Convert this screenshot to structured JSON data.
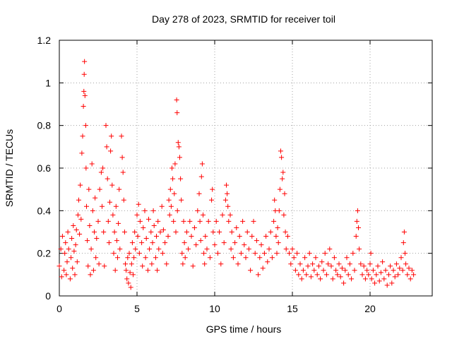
{
  "chart_data": {
    "type": "scatter",
    "title": "Day 278 of 2023, SRMTID for receiver toil",
    "xlabel": "GPS time / hours",
    "ylabel": "SRMTID / TECUs",
    "xlim": [
      0,
      24
    ],
    "ylim": [
      0,
      1.2
    ],
    "xticks": [
      0,
      5,
      10,
      15,
      20
    ],
    "xtick_labels": [
      "0",
      "5",
      "10",
      "15",
      "20"
    ],
    "yticks": [
      0,
      0.2,
      0.4,
      0.6,
      0.8,
      1.0,
      1.2
    ],
    "ytick_labels": [
      "0",
      "0.2",
      "0.4",
      "0.6",
      "0.8",
      "1",
      "1.2"
    ],
    "grid": true,
    "marker": "+",
    "color": "#ff0000",
    "series": [
      {
        "name": "SRMTID",
        "points": [
          [
            0.0,
            0.14
          ],
          [
            0.1,
            0.22
          ],
          [
            0.15,
            0.09
          ],
          [
            0.2,
            0.28
          ],
          [
            0.3,
            0.12
          ],
          [
            0.35,
            0.2
          ],
          [
            0.4,
            0.25
          ],
          [
            0.45,
            0.1
          ],
          [
            0.5,
            0.16
          ],
          [
            0.55,
            0.3
          ],
          [
            0.6,
            0.22
          ],
          [
            0.7,
            0.08
          ],
          [
            0.75,
            0.18
          ],
          [
            0.8,
            0.27
          ],
          [
            0.85,
            0.13
          ],
          [
            0.9,
            0.33
          ],
          [
            0.95,
            0.21
          ],
          [
            1.0,
            0.1
          ],
          [
            1.05,
            0.24
          ],
          [
            1.1,
            0.31
          ],
          [
            1.15,
            0.16
          ],
          [
            1.2,
            0.38
          ],
          [
            1.25,
            0.45
          ],
          [
            1.3,
            0.29
          ],
          [
            1.35,
            0.52
          ],
          [
            1.4,
            0.36
          ],
          [
            1.45,
            0.67
          ],
          [
            1.5,
            0.75
          ],
          [
            1.55,
            0.89
          ],
          [
            1.58,
            0.96
          ],
          [
            1.6,
            1.04
          ],
          [
            1.62,
            1.1
          ],
          [
            1.65,
            0.94
          ],
          [
            1.7,
            0.8
          ],
          [
            1.72,
            0.6
          ],
          [
            1.75,
            0.42
          ],
          [
            1.8,
            0.26
          ],
          [
            1.85,
            0.14
          ],
          [
            1.9,
            0.5
          ],
          [
            1.95,
            0.33
          ],
          [
            2.0,
            0.1
          ],
          [
            2.05,
            0.22
          ],
          [
            2.1,
            0.62
          ],
          [
            2.15,
            0.4
          ],
          [
            2.2,
            0.12
          ],
          [
            2.25,
            0.3
          ],
          [
            2.3,
            0.46
          ],
          [
            2.35,
            0.18
          ],
          [
            2.4,
            0.27
          ],
          [
            2.5,
            0.35
          ],
          [
            2.55,
            0.15
          ],
          [
            2.6,
            0.5
          ],
          [
            2.7,
            0.58
          ],
          [
            2.75,
            0.42
          ],
          [
            2.8,
            0.6
          ],
          [
            2.85,
            0.3
          ],
          [
            2.9,
            0.14
          ],
          [
            3.0,
            0.8
          ],
          [
            3.05,
            0.7
          ],
          [
            3.1,
            0.55
          ],
          [
            3.15,
            0.35
          ],
          [
            3.2,
            0.25
          ],
          [
            3.25,
            0.44
          ],
          [
            3.3,
            0.68
          ],
          [
            3.35,
            0.75
          ],
          [
            3.4,
            0.52
          ],
          [
            3.45,
            0.38
          ],
          [
            3.5,
            0.2
          ],
          [
            3.55,
            0.3
          ],
          [
            3.6,
            0.12
          ],
          [
            3.65,
            0.42
          ],
          [
            3.7,
            0.26
          ],
          [
            3.75,
            0.18
          ],
          [
            3.8,
            0.34
          ],
          [
            3.85,
            0.5
          ],
          [
            3.9,
            0.22
          ],
          [
            4.0,
            0.75
          ],
          [
            4.05,
            0.65
          ],
          [
            4.1,
            0.58
          ],
          [
            4.15,
            0.45
          ],
          [
            4.2,
            0.3
          ],
          [
            4.25,
            0.15
          ],
          [
            4.3,
            0.12
          ],
          [
            4.35,
            0.08
          ],
          [
            4.4,
            0.18
          ],
          [
            4.45,
            0.06
          ],
          [
            4.5,
            0.2
          ],
          [
            4.55,
            0.11
          ],
          [
            4.6,
            0.04
          ],
          [
            4.65,
            0.15
          ],
          [
            4.7,
            0.25
          ],
          [
            4.75,
            0.1
          ],
          [
            4.8,
            0.18
          ],
          [
            4.85,
            0.3
          ],
          [
            4.9,
            0.22
          ],
          [
            5.0,
            0.38
          ],
          [
            5.05,
            0.28
          ],
          [
            5.1,
            0.43
          ],
          [
            5.15,
            0.2
          ],
          [
            5.2,
            0.35
          ],
          [
            5.3,
            0.25
          ],
          [
            5.35,
            0.14
          ],
          [
            5.4,
            0.32
          ],
          [
            5.5,
            0.4
          ],
          [
            5.55,
            0.18
          ],
          [
            5.6,
            0.27
          ],
          [
            5.7,
            0.12
          ],
          [
            5.75,
            0.36
          ],
          [
            5.8,
            0.22
          ],
          [
            5.9,
            0.3
          ],
          [
            5.95,
            0.15
          ],
          [
            6.0,
            0.25
          ],
          [
            6.05,
            0.4
          ],
          [
            6.1,
            0.33
          ],
          [
            6.2,
            0.18
          ],
          [
            6.25,
            0.28
          ],
          [
            6.3,
            0.12
          ],
          [
            6.35,
            0.35
          ],
          [
            6.4,
            0.22
          ],
          [
            6.5,
            0.3
          ],
          [
            6.6,
            0.42
          ],
          [
            6.65,
            0.2
          ],
          [
            6.7,
            0.31
          ],
          [
            6.8,
            0.25
          ],
          [
            6.9,
            0.15
          ],
          [
            7.0,
            0.28
          ],
          [
            7.05,
            0.45
          ],
          [
            7.1,
            0.38
          ],
          [
            7.15,
            0.5
          ],
          [
            7.2,
            0.42
          ],
          [
            7.25,
            0.6
          ],
          [
            7.3,
            0.55
          ],
          [
            7.35,
            0.35
          ],
          [
            7.4,
            0.48
          ],
          [
            7.45,
            0.62
          ],
          [
            7.5,
            0.3
          ],
          [
            7.55,
            0.92
          ],
          [
            7.58,
            0.86
          ],
          [
            7.6,
            0.4
          ],
          [
            7.65,
            0.72
          ],
          [
            7.7,
            0.7
          ],
          [
            7.75,
            0.65
          ],
          [
            7.8,
            0.55
          ],
          [
            7.85,
            0.45
          ],
          [
            7.9,
            0.2
          ],
          [
            7.95,
            0.15
          ],
          [
            8.0,
            0.35
          ],
          [
            8.05,
            0.25
          ],
          [
            8.1,
            0.18
          ],
          [
            8.2,
            0.3
          ],
          [
            8.3,
            0.22
          ],
          [
            8.4,
            0.35
          ],
          [
            8.5,
            0.28
          ],
          [
            8.6,
            0.14
          ],
          [
            8.7,
            0.32
          ],
          [
            8.8,
            0.24
          ],
          [
            8.9,
            0.4
          ],
          [
            9.0,
            0.48
          ],
          [
            9.05,
            0.35
          ],
          [
            9.1,
            0.26
          ],
          [
            9.15,
            0.56
          ],
          [
            9.2,
            0.62
          ],
          [
            9.25,
            0.38
          ],
          [
            9.3,
            0.2
          ],
          [
            9.35,
            0.15
          ],
          [
            9.4,
            0.28
          ],
          [
            9.5,
            0.22
          ],
          [
            9.6,
            0.35
          ],
          [
            9.7,
            0.18
          ],
          [
            9.8,
            0.45
          ],
          [
            9.85,
            0.5
          ],
          [
            9.9,
            0.3
          ],
          [
            10.0,
            0.24
          ],
          [
            10.1,
            0.35
          ],
          [
            10.2,
            0.2
          ],
          [
            10.3,
            0.3
          ],
          [
            10.4,
            0.15
          ],
          [
            10.5,
            0.38
          ],
          [
            10.6,
            0.25
          ],
          [
            10.7,
            0.45
          ],
          [
            10.75,
            0.52
          ],
          [
            10.8,
            0.48
          ],
          [
            10.85,
            0.42
          ],
          [
            10.9,
            0.35
          ],
          [
            11.0,
            0.38
          ],
          [
            11.05,
            0.22
          ],
          [
            11.1,
            0.3
          ],
          [
            11.2,
            0.18
          ],
          [
            11.3,
            0.25
          ],
          [
            11.4,
            0.32
          ],
          [
            11.5,
            0.15
          ],
          [
            11.6,
            0.28
          ],
          [
            11.7,
            0.2
          ],
          [
            11.8,
            0.35
          ],
          [
            11.9,
            0.24
          ],
          [
            12.0,
            0.18
          ],
          [
            12.1,
            0.3
          ],
          [
            12.2,
            0.22
          ],
          [
            12.3,
            0.12
          ],
          [
            12.4,
            0.28
          ],
          [
            12.5,
            0.35
          ],
          [
            12.6,
            0.2
          ],
          [
            12.7,
            0.26
          ],
          [
            12.8,
            0.1
          ],
          [
            12.9,
            0.18
          ],
          [
            13.0,
            0.24
          ],
          [
            13.1,
            0.13
          ],
          [
            13.2,
            0.2
          ],
          [
            13.3,
            0.28
          ],
          [
            13.4,
            0.16
          ],
          [
            13.5,
            0.22
          ],
          [
            13.6,
            0.3
          ],
          [
            13.7,
            0.18
          ],
          [
            13.8,
            0.35
          ],
          [
            13.85,
            0.45
          ],
          [
            13.9,
            0.4
          ],
          [
            13.95,
            0.28
          ],
          [
            14.0,
            0.2
          ],
          [
            14.05,
            0.32
          ],
          [
            14.1,
            0.25
          ],
          [
            14.15,
            0.4
          ],
          [
            14.2,
            0.5
          ],
          [
            14.25,
            0.68
          ],
          [
            14.3,
            0.65
          ],
          [
            14.35,
            0.55
          ],
          [
            14.4,
            0.58
          ],
          [
            14.45,
            0.38
          ],
          [
            14.5,
            0.48
          ],
          [
            14.55,
            0.3
          ],
          [
            14.6,
            0.22
          ],
          [
            14.7,
            0.28
          ],
          [
            14.8,
            0.2
          ],
          [
            14.9,
            0.15
          ],
          [
            15.0,
            0.22
          ],
          [
            15.1,
            0.18
          ],
          [
            15.2,
            0.12
          ],
          [
            15.3,
            0.2
          ],
          [
            15.4,
            0.1
          ],
          [
            15.5,
            0.15
          ],
          [
            15.6,
            0.08
          ],
          [
            15.7,
            0.12
          ],
          [
            15.8,
            0.18
          ],
          [
            15.9,
            0.1
          ],
          [
            16.0,
            0.14
          ],
          [
            16.1,
            0.2
          ],
          [
            16.2,
            0.09
          ],
          [
            16.3,
            0.15
          ],
          [
            16.4,
            0.12
          ],
          [
            16.5,
            0.18
          ],
          [
            16.6,
            0.1
          ],
          [
            16.7,
            0.14
          ],
          [
            16.8,
            0.08
          ],
          [
            16.9,
            0.16
          ],
          [
            17.0,
            0.12
          ],
          [
            17.1,
            0.2
          ],
          [
            17.2,
            0.1
          ],
          [
            17.3,
            0.15
          ],
          [
            17.4,
            0.22
          ],
          [
            17.5,
            0.14
          ],
          [
            17.6,
            0.08
          ],
          [
            17.7,
            0.18
          ],
          [
            17.8,
            0.12
          ],
          [
            17.9,
            0.1
          ],
          [
            18.0,
            0.15
          ],
          [
            18.1,
            0.09
          ],
          [
            18.2,
            0.13
          ],
          [
            18.3,
            0.06
          ],
          [
            18.4,
            0.12
          ],
          [
            18.5,
            0.18
          ],
          [
            18.6,
            0.1
          ],
          [
            18.7,
            0.15
          ],
          [
            18.8,
            0.08
          ],
          [
            18.9,
            0.2
          ],
          [
            19.0,
            0.12
          ],
          [
            19.1,
            0.28
          ],
          [
            19.15,
            0.35
          ],
          [
            19.2,
            0.4
          ],
          [
            19.25,
            0.32
          ],
          [
            19.3,
            0.22
          ],
          [
            19.4,
            0.15
          ],
          [
            19.5,
            0.1
          ],
          [
            19.6,
            0.14
          ],
          [
            19.7,
            0.08
          ],
          [
            19.8,
            0.12
          ],
          [
            19.9,
            0.1
          ],
          [
            20.0,
            0.15
          ],
          [
            20.05,
            0.2
          ],
          [
            20.1,
            0.08
          ],
          [
            20.2,
            0.12
          ],
          [
            20.3,
            0.06
          ],
          [
            20.4,
            0.1
          ],
          [
            20.5,
            0.14
          ],
          [
            20.6,
            0.07
          ],
          [
            20.7,
            0.11
          ],
          [
            20.8,
            0.16
          ],
          [
            20.9,
            0.08
          ],
          [
            21.0,
            0.12
          ],
          [
            21.1,
            0.05
          ],
          [
            21.2,
            0.1
          ],
          [
            21.3,
            0.14
          ],
          [
            21.4,
            0.06
          ],
          [
            21.5,
            0.12
          ],
          [
            21.6,
            0.09
          ],
          [
            21.7,
            0.15
          ],
          [
            21.8,
            0.1
          ],
          [
            21.9,
            0.13
          ],
          [
            22.0,
            0.18
          ],
          [
            22.1,
            0.12
          ],
          [
            22.15,
            0.25
          ],
          [
            22.2,
            0.3
          ],
          [
            22.25,
            0.2
          ],
          [
            22.3,
            0.15
          ],
          [
            22.4,
            0.1
          ],
          [
            22.5,
            0.13
          ],
          [
            22.6,
            0.08
          ],
          [
            22.7,
            0.12
          ],
          [
            22.8,
            0.1
          ]
        ]
      }
    ]
  }
}
